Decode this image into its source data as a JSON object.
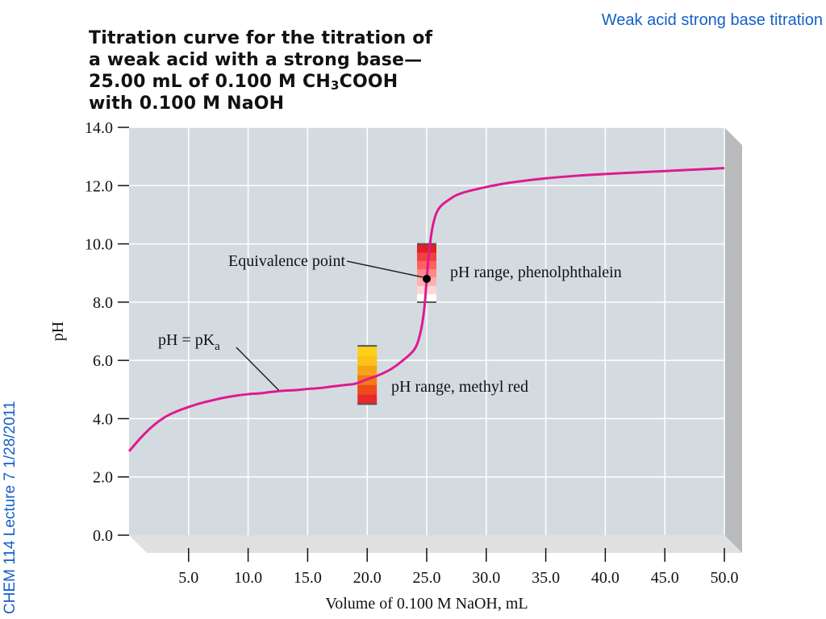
{
  "slide": {
    "header": "Weak acid strong base titration",
    "footer": "CHEM 114 Lecture 7 1/28/2011"
  },
  "title_lines": [
    "Titration curve for the titration of",
    "a weak acid with a strong base—",
    "25.00 mL of 0.100 M CH",
    "3",
    "COOH",
    "with 0.100 M NaOH"
  ],
  "chart_data": {
    "type": "line",
    "xlabel": "Volume of 0.100 M NaOH, mL",
    "ylabel": "pH",
    "xlim": [
      0,
      50
    ],
    "ylim": [
      0,
      14
    ],
    "grid": true,
    "x_ticks": [
      "5.0",
      "10.0",
      "15.0",
      "20.0",
      "25.0",
      "30.0",
      "35.0",
      "40.0",
      "45.0",
      "50.0"
    ],
    "y_ticks": [
      "0.0",
      "2.0",
      "4.0",
      "6.0",
      "8.0",
      "10.0",
      "12.0",
      "14.0"
    ],
    "series": [
      {
        "color": "#e0198f",
        "points": [
          [
            0.0,
            2.88
          ],
          [
            1.0,
            3.35
          ],
          [
            2.0,
            3.75
          ],
          [
            3.0,
            4.05
          ],
          [
            4.0,
            4.25
          ],
          [
            5.0,
            4.4
          ],
          [
            6.0,
            4.53
          ],
          [
            7.0,
            4.63
          ],
          [
            8.0,
            4.72
          ],
          [
            9.0,
            4.79
          ],
          [
            10.0,
            4.84
          ],
          [
            11.0,
            4.87
          ],
          [
            12.0,
            4.92
          ],
          [
            13.0,
            4.96
          ],
          [
            14.0,
            4.98
          ],
          [
            15.0,
            5.02
          ],
          [
            16.0,
            5.05
          ],
          [
            17.0,
            5.1
          ],
          [
            18.0,
            5.15
          ],
          [
            19.0,
            5.2
          ],
          [
            20.0,
            5.35
          ],
          [
            21.0,
            5.5
          ],
          [
            22.0,
            5.7
          ],
          [
            23.0,
            6.0
          ],
          [
            24.0,
            6.4
          ],
          [
            24.5,
            7.0
          ],
          [
            24.8,
            7.8
          ],
          [
            25.0,
            8.8
          ],
          [
            25.2,
            9.7
          ],
          [
            25.5,
            10.6
          ],
          [
            26.0,
            11.2
          ],
          [
            27.0,
            11.55
          ],
          [
            28.0,
            11.75
          ],
          [
            30.0,
            11.95
          ],
          [
            32.0,
            12.1
          ],
          [
            35.0,
            12.25
          ],
          [
            38.0,
            12.35
          ],
          [
            40.0,
            12.4
          ],
          [
            45.0,
            12.5
          ],
          [
            50.0,
            12.6
          ]
        ]
      }
    ],
    "indicators": [
      {
        "label": "pH range, phenolphthalein",
        "x": 25.0,
        "ph_low": 8.0,
        "ph_high": 10.0,
        "colors": [
          "#ffffff",
          "#ffd6d6",
          "#ffb0b0",
          "#ff8a8a",
          "#ff6060",
          "#f04040",
          "#e02020"
        ]
      },
      {
        "label": "pH range, methyl red",
        "x": 20.0,
        "ph_low": 4.5,
        "ph_high": 6.5,
        "colors": [
          "#e8282b",
          "#ee4a1e",
          "#f37a14",
          "#f7a314",
          "#fbc218",
          "#fdd11a"
        ]
      }
    ],
    "annotations": [
      {
        "text": "Equivalence point",
        "x": 25.0,
        "y": 8.8
      },
      {
        "text": "pH = pK",
        "sub": "a",
        "x": 12.5,
        "y": 4.95
      }
    ]
  }
}
